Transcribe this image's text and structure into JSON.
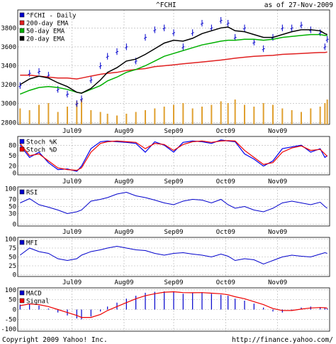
{
  "header": {
    "symbol": "^FCHI",
    "asof": "as of 27-Nov-2009"
  },
  "footer": {
    "copyright": "Copyright 2009 Yahoo! Inc.",
    "url": "http://finance.yahoo.com/"
  },
  "colors": {
    "price": "#0000cc",
    "ema200": "#e02020",
    "ema50": "#00b000",
    "ema20": "#000000",
    "volume": "#e0a030",
    "stochK": "#0000ee",
    "stochD": "#ee0000",
    "rsi": "#0000cc",
    "mfi": "#0000cc",
    "macd": "#0000cc",
    "signal": "#ee0000",
    "grid": "#b0b0b0"
  },
  "chart_data": [
    {
      "type": "line",
      "id": "price",
      "legend": [
        "^FCHI - Daily",
        "200-day EMA",
        "50-day EMA",
        "20-day EMA"
      ],
      "yticks": [
        2800,
        3000,
        3200,
        3400,
        3600,
        3800
      ],
      "ylim": [
        2780,
        3990
      ],
      "xticks": [
        {
          "label": "Jul09",
          "x": 23
        },
        {
          "label": "Aug09",
          "x": 45
        },
        {
          "label": "Sep09",
          "x": 66
        },
        {
          "label": "Oct09",
          "x": 88
        },
        {
          "label": "Nov09",
          "x": 110
        }
      ],
      "x": [
        1,
        5,
        9,
        13,
        17,
        21,
        25,
        27,
        31,
        35,
        38,
        42,
        46,
        50,
        54,
        58,
        62,
        66,
        70,
        74,
        78,
        82,
        86,
        89,
        92,
        96,
        100,
        104,
        108,
        112,
        116,
        120,
        124,
        128,
        130,
        131
      ],
      "close": [
        3190,
        3320,
        3340,
        3300,
        3150,
        3100,
        3000,
        3050,
        3250,
        3400,
        3500,
        3550,
        3600,
        3450,
        3700,
        3780,
        3800,
        3750,
        3600,
        3750,
        3850,
        3800,
        3880,
        3850,
        3700,
        3800,
        3650,
        3580,
        3700,
        3800,
        3800,
        3830,
        3780,
        3750,
        3600,
        3680
      ],
      "ema200": [
        3300,
        3300,
        3290,
        3280,
        3270,
        3270,
        3260,
        3270,
        3290,
        3310,
        3320,
        3330,
        3350,
        3360,
        3370,
        3390,
        3400,
        3410,
        3420,
        3430,
        3440,
        3450,
        3460,
        3470,
        3480,
        3490,
        3500,
        3505,
        3510,
        3520,
        3525,
        3530,
        3535,
        3540,
        3540,
        3545
      ],
      "ema50": [
        3100,
        3140,
        3170,
        3180,
        3170,
        3150,
        3120,
        3110,
        3150,
        3190,
        3240,
        3280,
        3330,
        3360,
        3400,
        3450,
        3500,
        3530,
        3560,
        3590,
        3620,
        3640,
        3660,
        3670,
        3670,
        3680,
        3680,
        3670,
        3680,
        3700,
        3710,
        3720,
        3730,
        3730,
        3720,
        3720
      ],
      "ema20": [
        3200,
        3260,
        3290,
        3270,
        3220,
        3180,
        3120,
        3110,
        3160,
        3250,
        3330,
        3380,
        3450,
        3470,
        3520,
        3580,
        3640,
        3670,
        3660,
        3690,
        3740,
        3770,
        3800,
        3810,
        3770,
        3760,
        3730,
        3700,
        3700,
        3730,
        3760,
        3780,
        3780,
        3770,
        3740,
        3730
      ],
      "volume": [
        45,
        40,
        55,
        60,
        35,
        50,
        65,
        70,
        40,
        35,
        30,
        25,
        30,
        35,
        40,
        45,
        50,
        55,
        60,
        45,
        50,
        55,
        65,
        60,
        70,
        55,
        50,
        60,
        55,
        45,
        40,
        35,
        45,
        50,
        60,
        70
      ]
    },
    {
      "type": "line",
      "id": "stoch",
      "legend": [
        "Stoch %K",
        "Stoch %D"
      ],
      "yticks": [
        0,
        20,
        50,
        80
      ],
      "ylim": [
        -5,
        105
      ],
      "k": [
        80,
        45,
        60,
        30,
        10,
        12,
        5,
        20,
        70,
        90,
        92,
        90,
        88,
        85,
        60,
        90,
        80,
        60,
        88,
        92,
        90,
        85,
        95,
        92,
        90,
        55,
        40,
        20,
        35,
        70,
        75,
        80,
        60,
        70,
        45,
        50
      ],
      "d": [
        85,
        50,
        55,
        35,
        15,
        10,
        8,
        15,
        60,
        85,
        90,
        92,
        90,
        88,
        70,
        85,
        82,
        65,
        82,
        90,
        92,
        88,
        92,
        93,
        92,
        65,
        45,
        25,
        30,
        60,
        72,
        78,
        65,
        68,
        55,
        48
      ]
    },
    {
      "type": "line",
      "id": "rsi",
      "legend": [
        "RSI"
      ],
      "yticks": [
        0,
        30,
        50,
        70,
        100
      ],
      "ylim": [
        -5,
        105
      ],
      "values": [
        60,
        72,
        55,
        48,
        40,
        30,
        35,
        40,
        65,
        70,
        75,
        85,
        90,
        80,
        75,
        68,
        60,
        55,
        65,
        70,
        68,
        60,
        70,
        55,
        45,
        50,
        40,
        35,
        45,
        60,
        65,
        60,
        55,
        62,
        50,
        45
      ]
    },
    {
      "type": "line",
      "id": "mfi",
      "legend": [
        "MFI"
      ],
      "yticks": [
        0,
        25,
        50,
        75,
        100
      ],
      "ylim": [
        -5,
        105
      ],
      "values": [
        55,
        75,
        65,
        60,
        45,
        40,
        45,
        55,
        65,
        70,
        75,
        80,
        75,
        70,
        68,
        60,
        55,
        60,
        62,
        58,
        55,
        50,
        58,
        52,
        40,
        45,
        42,
        30,
        40,
        50,
        55,
        52,
        50,
        58,
        62,
        60
      ]
    },
    {
      "type": "bar",
      "id": "macd",
      "legend": [
        "MACD",
        "Signal"
      ],
      "yticks": [
        -100,
        -50,
        0,
        50,
        100
      ],
      "ylim": [
        -110,
        110
      ],
      "macd": [
        25,
        30,
        20,
        5,
        -15,
        -30,
        -45,
        -50,
        -35,
        -10,
        15,
        35,
        55,
        70,
        85,
        90,
        92,
        90,
        80,
        85,
        88,
        80,
        75,
        70,
        55,
        45,
        30,
        10,
        -10,
        -15,
        -5,
        10,
        15,
        12,
        8,
        5
      ],
      "signal": [
        20,
        28,
        25,
        15,
        0,
        -15,
        -30,
        -40,
        -40,
        -25,
        -5,
        15,
        35,
        55,
        70,
        80,
        88,
        90,
        86,
        85,
        86,
        83,
        80,
        75,
        65,
        55,
        40,
        25,
        5,
        -5,
        -5,
        2,
        8,
        10,
        9,
        7
      ]
    }
  ]
}
